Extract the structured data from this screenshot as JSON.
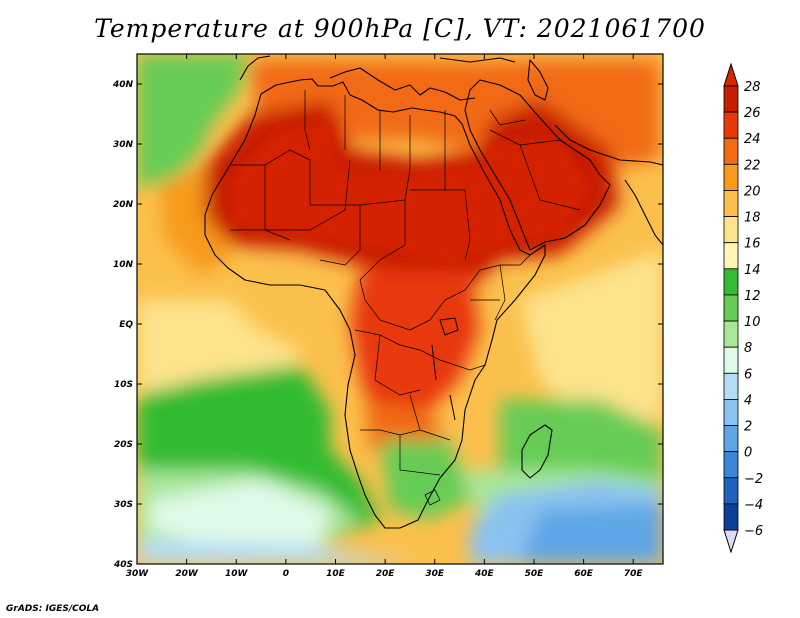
{
  "title": "Temperature at 900hPa [C], VT: 2021061700",
  "credit": "GrADS: IGES/COLA",
  "map": {
    "lon_range": [
      -30,
      76
    ],
    "lat_range": [
      -40,
      45
    ],
    "lon_ticks": [
      {
        "value": -30,
        "label": "30W"
      },
      {
        "value": -20,
        "label": "20W"
      },
      {
        "value": -10,
        "label": "10W"
      },
      {
        "value": 0,
        "label": "0"
      },
      {
        "value": 10,
        "label": "10E"
      },
      {
        "value": 20,
        "label": "20E"
      },
      {
        "value": 30,
        "label": "30E"
      },
      {
        "value": 40,
        "label": "40E"
      },
      {
        "value": 50,
        "label": "50E"
      },
      {
        "value": 60,
        "label": "60E"
      },
      {
        "value": 70,
        "label": "70E"
      }
    ],
    "lat_ticks": [
      {
        "value": 40,
        "label": "40N"
      },
      {
        "value": 30,
        "label": "30N"
      },
      {
        "value": 20,
        "label": "20N"
      },
      {
        "value": 10,
        "label": "10N"
      },
      {
        "value": 0,
        "label": "EQ"
      },
      {
        "value": -10,
        "label": "10S"
      },
      {
        "value": -20,
        "label": "20S"
      },
      {
        "value": -30,
        "label": "30S"
      },
      {
        "value": -40,
        "label": "40S"
      }
    ]
  },
  "colorbar": {
    "levels": [
      28,
      26,
      24,
      22,
      20,
      18,
      16,
      14,
      12,
      10,
      8,
      6,
      4,
      2,
      0,
      -2,
      -4,
      -6
    ],
    "labels": [
      "28",
      "26",
      "24",
      "22",
      "20",
      "18",
      "16",
      "14",
      "12",
      "10",
      "8",
      "6",
      "4",
      "2",
      "0",
      "−2",
      "−4",
      "−6"
    ],
    "colors": [
      "#c81e00",
      "#e8380a",
      "#f26a12",
      "#f79a1e",
      "#fbc04c",
      "#fde38c",
      "#fdf7b4",
      "#33bb33",
      "#66cc55",
      "#a8e69a",
      "#e0fae8",
      "#b4dcf6",
      "#8ac2f0",
      "#5ea6e6",
      "#3a86d8",
      "#1e62c0",
      "#0c3e9c",
      "#08186e"
    ],
    "top_color": "#d82600",
    "bottom_color": "#dcdcf6"
  }
}
